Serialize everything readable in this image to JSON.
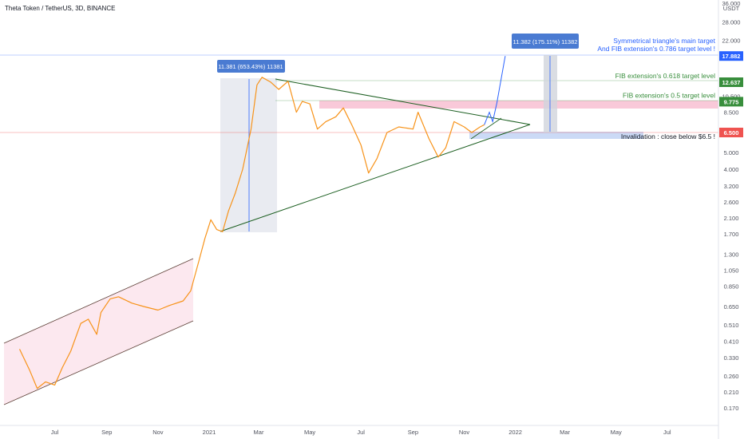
{
  "chart_data": {
    "type": "line",
    "title": "Theta Token / TetherUS, 3D, BINANCE",
    "price_unit": "USDT",
    "scale": "log",
    "ylim": [
      0.15,
      36.0
    ],
    "x_tick_labels": [
      "Jul",
      "Sep",
      "Nov",
      "2021",
      "Mar",
      "May",
      "Jul",
      "Sep",
      "Nov",
      "2022",
      "Mar",
      "May",
      "Jul"
    ],
    "y_tick_labels": [
      "36.000",
      "28.000",
      "22.000",
      "10.500",
      "8.500",
      "5.000",
      "4.000",
      "3.200",
      "2.600",
      "2.100",
      "1.700",
      "1.300",
      "1.050",
      "0.850",
      "0.650",
      "0.510",
      "0.410",
      "0.330",
      "0.260",
      "0.210",
      "0.170"
    ],
    "series": [
      {
        "color": "#f7931a",
        "x": [
          "2020-05-20",
          "2020-06-01",
          "2020-06-10",
          "2020-06-20",
          "2020-07-01",
          "2020-07-10",
          "2020-07-20",
          "2020-08-01",
          "2020-08-10",
          "2020-08-20",
          "2020-08-25",
          "2020-09-05",
          "2020-09-15",
          "2020-10-01",
          "2020-10-15",
          "2020-11-01",
          "2020-11-15",
          "2020-12-01",
          "2020-12-10",
          "2020-12-20",
          "2020-12-27",
          "2021-01-03",
          "2021-01-10",
          "2021-01-17",
          "2021-01-24",
          "2021-02-01",
          "2021-02-10",
          "2021-02-20",
          "2021-02-27",
          "2021-03-05",
          "2021-03-15",
          "2021-03-25",
          "2021-04-05",
          "2021-04-15",
          "2021-04-22",
          "2021-05-01",
          "2021-05-10",
          "2021-05-20",
          "2021-06-01",
          "2021-06-10",
          "2021-06-20",
          "2021-07-01",
          "2021-07-10",
          "2021-07-20",
          "2021-08-01",
          "2021-08-15",
          "2021-09-01",
          "2021-09-07",
          "2021-09-20",
          "2021-10-01",
          "2021-10-10",
          "2021-10-20",
          "2021-11-01",
          "2021-11-10",
          "2021-11-20",
          "2021-11-25"
        ],
        "y": [
          0.37,
          0.28,
          0.22,
          0.24,
          0.23,
          0.29,
          0.36,
          0.52,
          0.55,
          0.45,
          0.6,
          0.72,
          0.74,
          0.68,
          0.65,
          0.62,
          0.66,
          0.7,
          0.8,
          1.2,
          1.6,
          2.05,
          1.8,
          1.75,
          2.3,
          2.9,
          4.0,
          6.8,
          12.2,
          13.5,
          12.7,
          11.5,
          12.8,
          8.5,
          9.8,
          9.5,
          6.8,
          7.5,
          8.0,
          9.0,
          7.2,
          5.5,
          3.8,
          4.6,
          6.5,
          7.0,
          6.8,
          8.5,
          6.0,
          4.7,
          5.3,
          7.5,
          7.0,
          6.5,
          7.0,
          7.2
        ]
      }
    ],
    "projection": {
      "color": "#2962ff",
      "x": [
        "2021-11-25",
        "2021-12-01",
        "2021-12-05",
        "2021-12-10",
        "2021-12-20"
      ],
      "y": [
        7.2,
        8.5,
        7.5,
        9.6,
        17.88
      ]
    },
    "levels": [
      {
        "label": "Symmetrical triangle's main target",
        "label2": "And FIB extension's 0.786 target level !",
        "price_label": "17.882",
        "value": 17.882,
        "color": "#2962ff"
      },
      {
        "label": "FIB extension's 0.618 target level",
        "price_label": "12.637",
        "value": 12.637,
        "color": "#388e3c"
      },
      {
        "label": "FIB extension's 0.5 target level",
        "price_label": "9.775",
        "value": 9.775,
        "color": "#388e3c"
      },
      {
        "label": "Invalidation : close below $6.5 !",
        "price_label": "6.500",
        "value": 6.5,
        "color": "#ef5350"
      }
    ],
    "measure_boxes": [
      {
        "label": "11.381 (653.43%) 11381"
      },
      {
        "label": "11.382 (175.11%) 11382"
      }
    ]
  }
}
